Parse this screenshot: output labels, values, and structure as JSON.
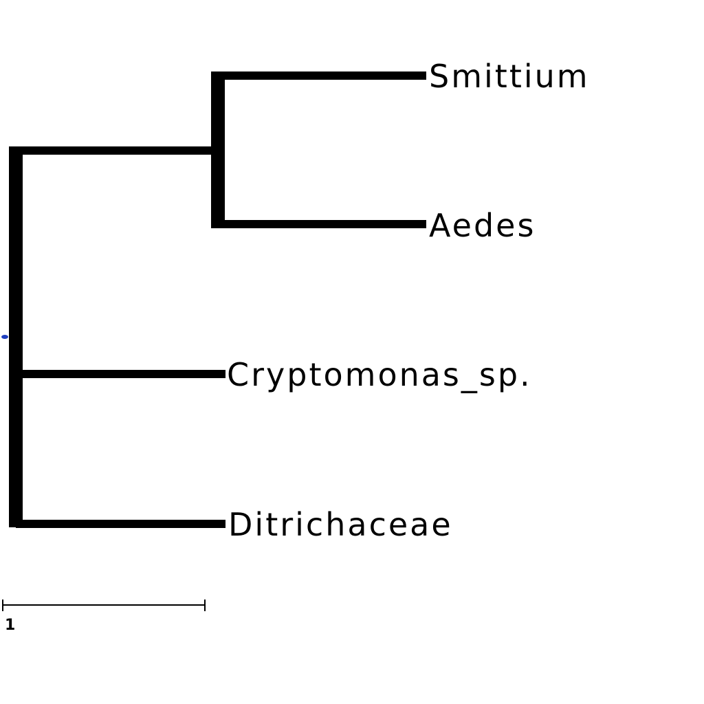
{
  "tree": {
    "leaves": [
      {
        "id": "smittium",
        "label": "Smittium"
      },
      {
        "id": "aedes",
        "label": "Aedes"
      },
      {
        "id": "cryptomonas",
        "label": "Cryptomonas_sp."
      },
      {
        "id": "ditrichaceae",
        "label": "Ditrichaceae"
      }
    ],
    "branch_color": "#000000",
    "root_marker_color": "#1f3fbf"
  },
  "scale_bar": {
    "label": "1"
  }
}
